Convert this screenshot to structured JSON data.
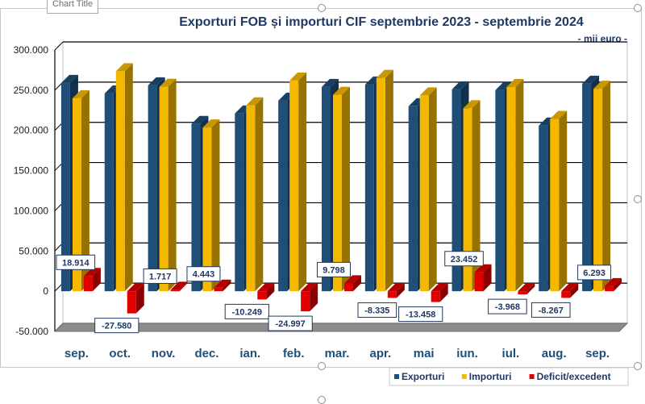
{
  "window": {
    "chart_title_tab": "Chart Title"
  },
  "chart_data": {
    "type": "bar",
    "title": "Exporturi FOB și importuri CIF septembrie 2023 - septembrie 2024",
    "unit": "- mii euro -",
    "categories": [
      "sep.",
      "oct.",
      "nov.",
      "dec.",
      "ian.",
      "feb.",
      "mar.",
      "apr.",
      "mai",
      "iun.",
      "iul.",
      "aug.",
      "sep."
    ],
    "series": [
      {
        "name": "Exporturi",
        "color": "#1f4e79",
        "values": [
          259000,
          246000,
          256000,
          208000,
          221000,
          237000,
          254000,
          257000,
          230000,
          251000,
          250000,
          206000,
          258000
        ]
      },
      {
        "name": "Importuri",
        "color": "#f5b800",
        "values": [
          240000,
          273500,
          254300,
          203600,
          231200,
          262000,
          244200,
          265300,
          243500,
          227500,
          254000,
          214300,
          251700
        ]
      },
      {
        "name": "Deficit/excedent",
        "color": "#e00000",
        "values": [
          18914,
          -27580,
          1717,
          4443,
          -10249,
          -24997,
          9798,
          -8335,
          -13458,
          23452,
          -3968,
          -8267,
          6293
        ]
      }
    ],
    "data_labels": [
      "18.914",
      "-27.580",
      "1.717",
      "4.443",
      "-10.249",
      "-24.997",
      "9.798",
      "-8.335",
      "-13.458",
      "23.452",
      "-3.968",
      "-8.267",
      "6.293"
    ],
    "y_tick_labels": [
      "300.000",
      "250.000",
      "200.000",
      "150.000",
      "100.000",
      "50.000",
      "0",
      "-50.000"
    ],
    "y_ticks": [
      300000,
      250000,
      200000,
      150000,
      100000,
      50000,
      0,
      -50000
    ],
    "ylim": [
      -50000,
      300000
    ],
    "grid": true,
    "legend_position": "bottom-right"
  }
}
